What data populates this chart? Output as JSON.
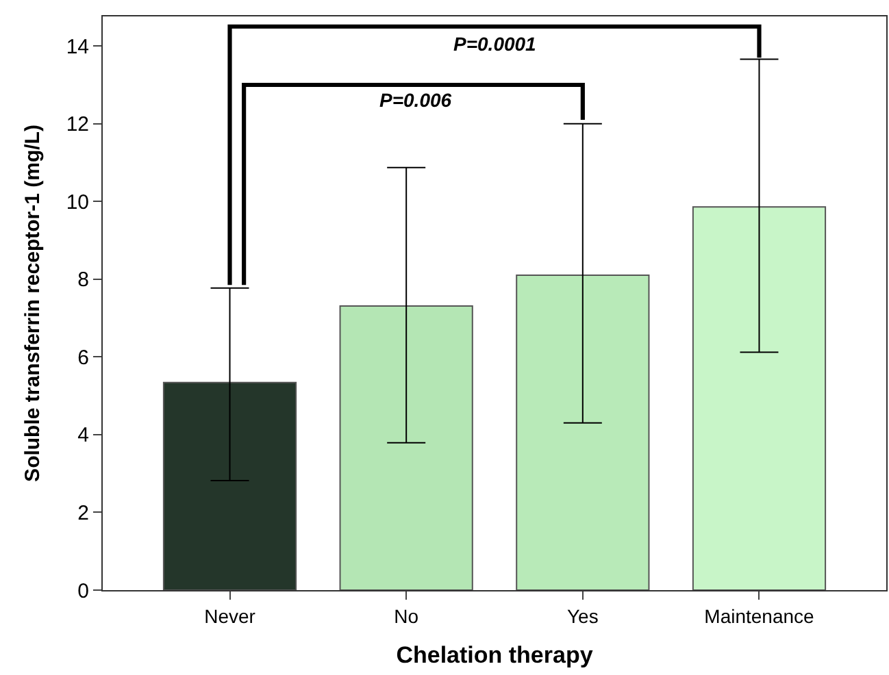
{
  "chart_data": {
    "type": "bar",
    "xlabel": "Chelation therapy",
    "ylabel": "Soluble transferrin receptor-1 (mg/L)",
    "categories": [
      "Never",
      "No",
      "Yes",
      "Maintenance"
    ],
    "values": [
      5.34,
      7.31,
      8.1,
      9.86
    ],
    "colors": [
      "#24362a",
      "#b4e6b4",
      "#b8eab8",
      "#c8f5c8"
    ],
    "errors": [
      [
        2.82,
        7.77
      ],
      [
        3.79,
        10.87
      ],
      [
        4.3,
        12.0
      ],
      [
        6.12,
        13.66
      ]
    ],
    "ylim": [
      0,
      14.76
    ],
    "yticks": [
      0,
      2,
      4,
      6,
      8,
      10,
      12,
      14
    ],
    "annotations": [
      "P=0.0001",
      "P=0.006"
    ],
    "legend": false
  }
}
